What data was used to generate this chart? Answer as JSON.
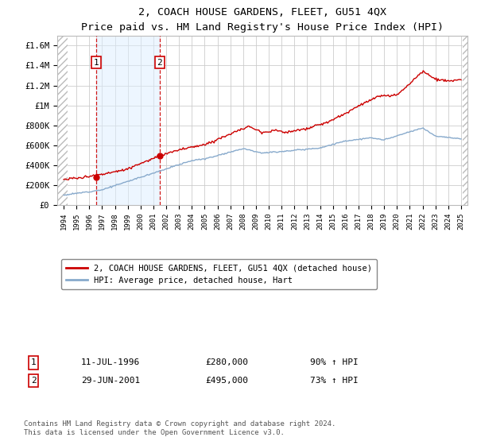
{
  "title": "2, COACH HOUSE GARDENS, FLEET, GU51 4QX",
  "subtitle": "Price paid vs. HM Land Registry's House Price Index (HPI)",
  "legend_label_red": "2, COACH HOUSE GARDENS, FLEET, GU51 4QX (detached house)",
  "legend_label_blue": "HPI: Average price, detached house, Hart",
  "transaction1_date": "11-JUL-1996",
  "transaction1_price": "£280,000",
  "transaction1_hpi": "90% ↑ HPI",
  "transaction1_year": 1996.54,
  "transaction1_value": 280000,
  "transaction2_date": "29-JUN-2001",
  "transaction2_price": "£495,000",
  "transaction2_hpi": "73% ↑ HPI",
  "transaction2_year": 2001.49,
  "transaction2_value": 495000,
  "footer": "Contains HM Land Registry data © Crown copyright and database right 2024.\nThis data is licensed under the Open Government Licence v3.0.",
  "ylim": [
    0,
    1700000
  ],
  "yticks": [
    0,
    200000,
    400000,
    600000,
    800000,
    1000000,
    1200000,
    1400000,
    1600000
  ],
  "ytick_labels": [
    "£0",
    "£200K",
    "£400K",
    "£600K",
    "£800K",
    "£1M",
    "£1.2M",
    "£1.4M",
    "£1.6M"
  ],
  "red_color": "#cc0000",
  "blue_color": "#88aacc",
  "shade_color": "#ddeeff",
  "xlim_left": 1993.5,
  "xlim_right": 2025.5,
  "hatch_left_end": 1994.3,
  "hatch_right_start": 2025.1
}
